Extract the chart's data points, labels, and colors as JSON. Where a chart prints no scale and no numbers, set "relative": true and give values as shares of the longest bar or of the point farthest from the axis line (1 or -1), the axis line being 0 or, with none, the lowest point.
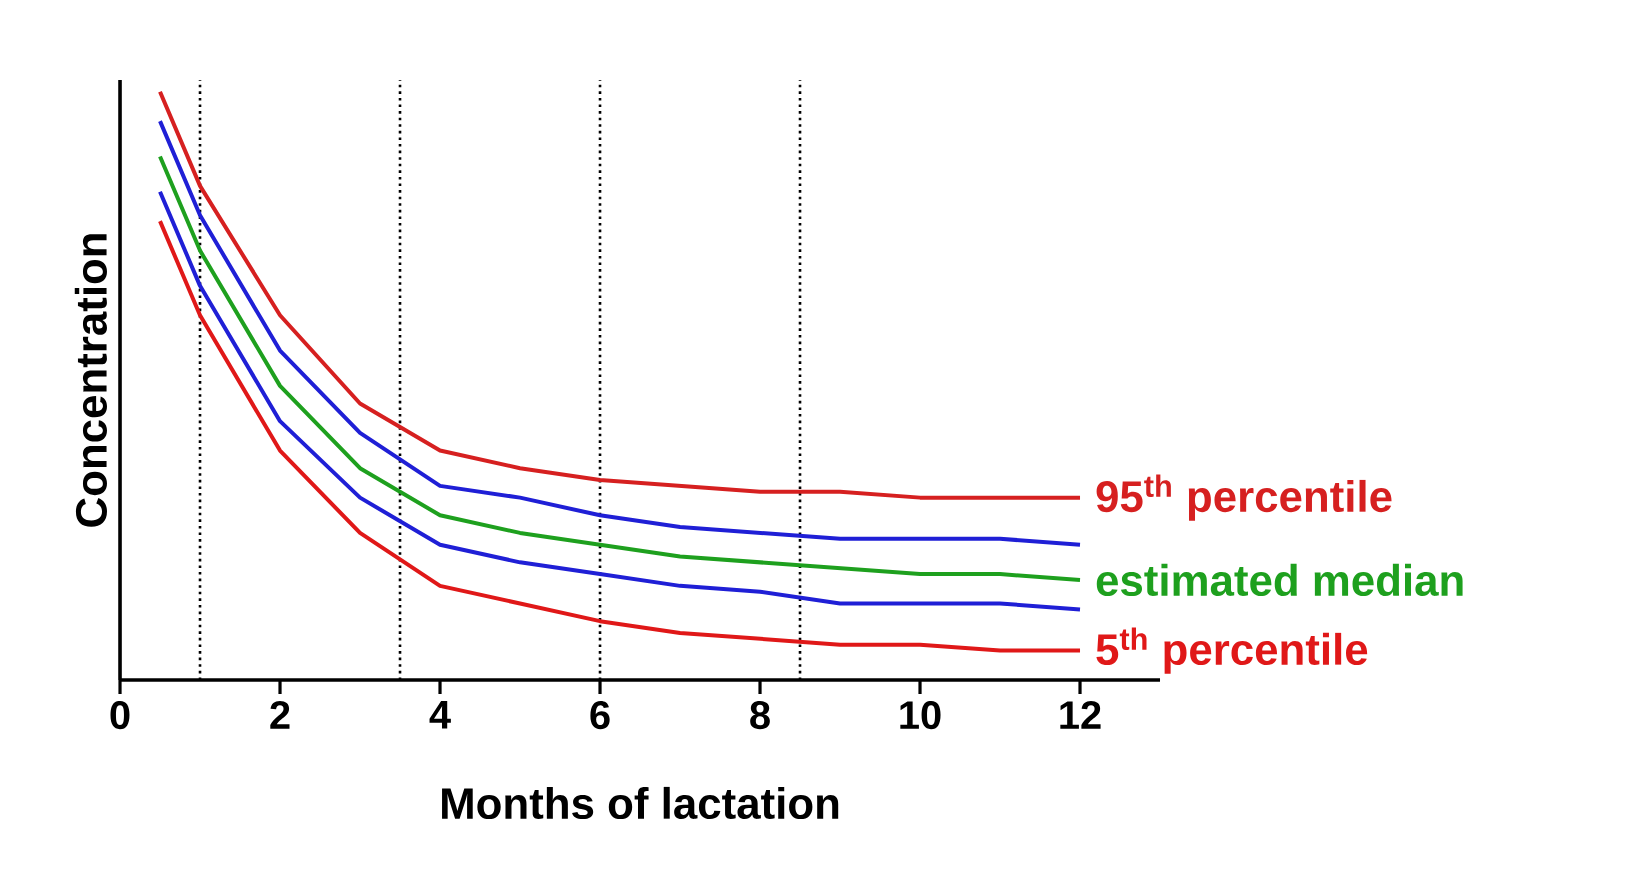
{
  "chart_data": {
    "type": "line",
    "relative": true,
    "xlabel": "Months of lactation",
    "ylabel": "Concentration",
    "xlim": [
      0,
      13
    ],
    "xticks": [
      0,
      2,
      4,
      6,
      8,
      10,
      12
    ],
    "x": [
      0.5,
      1,
      2,
      3,
      4,
      5,
      6,
      7,
      8,
      9,
      10,
      11,
      12
    ],
    "series": [
      {
        "name": "95$^{th}$ percentile",
        "color": "#d62020",
        "values": [
          1,
          0.84,
          0.62,
          0.47,
          0.39,
          0.36,
          0.34,
          0.33,
          0.32,
          0.32,
          0.31,
          0.31,
          0.31
        ]
      },
      {
        "color": "#1f1fd6",
        "values": [
          0.95,
          0.79,
          0.56,
          0.42,
          0.33,
          0.31,
          0.28,
          0.26,
          0.25,
          0.24,
          0.24,
          0.24,
          0.23
        ]
      },
      {
        "name": "estimated median",
        "color": "#1ea01e",
        "values": [
          0.89,
          0.73,
          0.5,
          0.36,
          0.28,
          0.25,
          0.23,
          0.21,
          0.2,
          0.19,
          0.18,
          0.18,
          0.17
        ]
      },
      {
        "color": "#1f1fd6",
        "values": [
          0.83,
          0.67,
          0.44,
          0.31,
          0.23,
          0.2,
          0.18,
          0.16,
          0.15,
          0.13,
          0.13,
          0.13,
          0.12
        ]
      },
      {
        "name": "5$^{th}$ percentile",
        "color": "#e01818",
        "values": [
          0.78,
          0.62,
          0.39,
          0.25,
          0.16,
          0.13,
          0.1,
          0.08,
          0.07,
          0.06,
          0.06,
          0.05,
          0.05
        ]
      }
    ],
    "ref_lines": [
      {
        "axis": "x",
        "value": 1,
        "line_style": "dotted",
        "color": "#000000"
      },
      {
        "axis": "x",
        "value": 3.5,
        "line_style": "dotted",
        "color": "#000000"
      },
      {
        "axis": "x",
        "value": 6,
        "line_style": "dotted",
        "color": "#000000"
      },
      {
        "axis": "x",
        "value": 8.5,
        "line_style": "dotted",
        "color": "#000000"
      }
    ]
  }
}
